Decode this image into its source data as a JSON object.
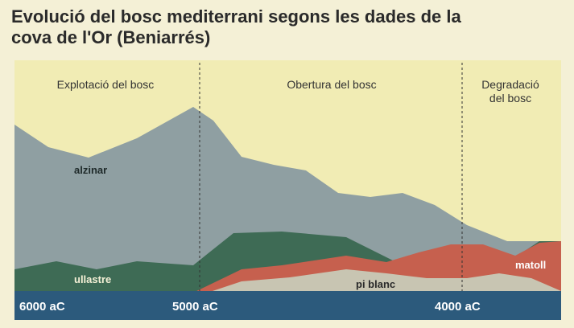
{
  "header": {
    "title_line1": "Evolució del bosc mediterrani segons les dades de la",
    "title_line2": "cova de l'Or (Beniarrés)"
  },
  "periods": [
    "Explotació del bosc",
    "Obertura del bosc",
    "Degradació",
    "del bosc"
  ],
  "series_labels": [
    "alzinar",
    "ullastre",
    "pi blanc",
    "matoll"
  ],
  "axis_labels": [
    "6000 aC",
    "5000 aC",
    "4000 aC"
  ]
}
